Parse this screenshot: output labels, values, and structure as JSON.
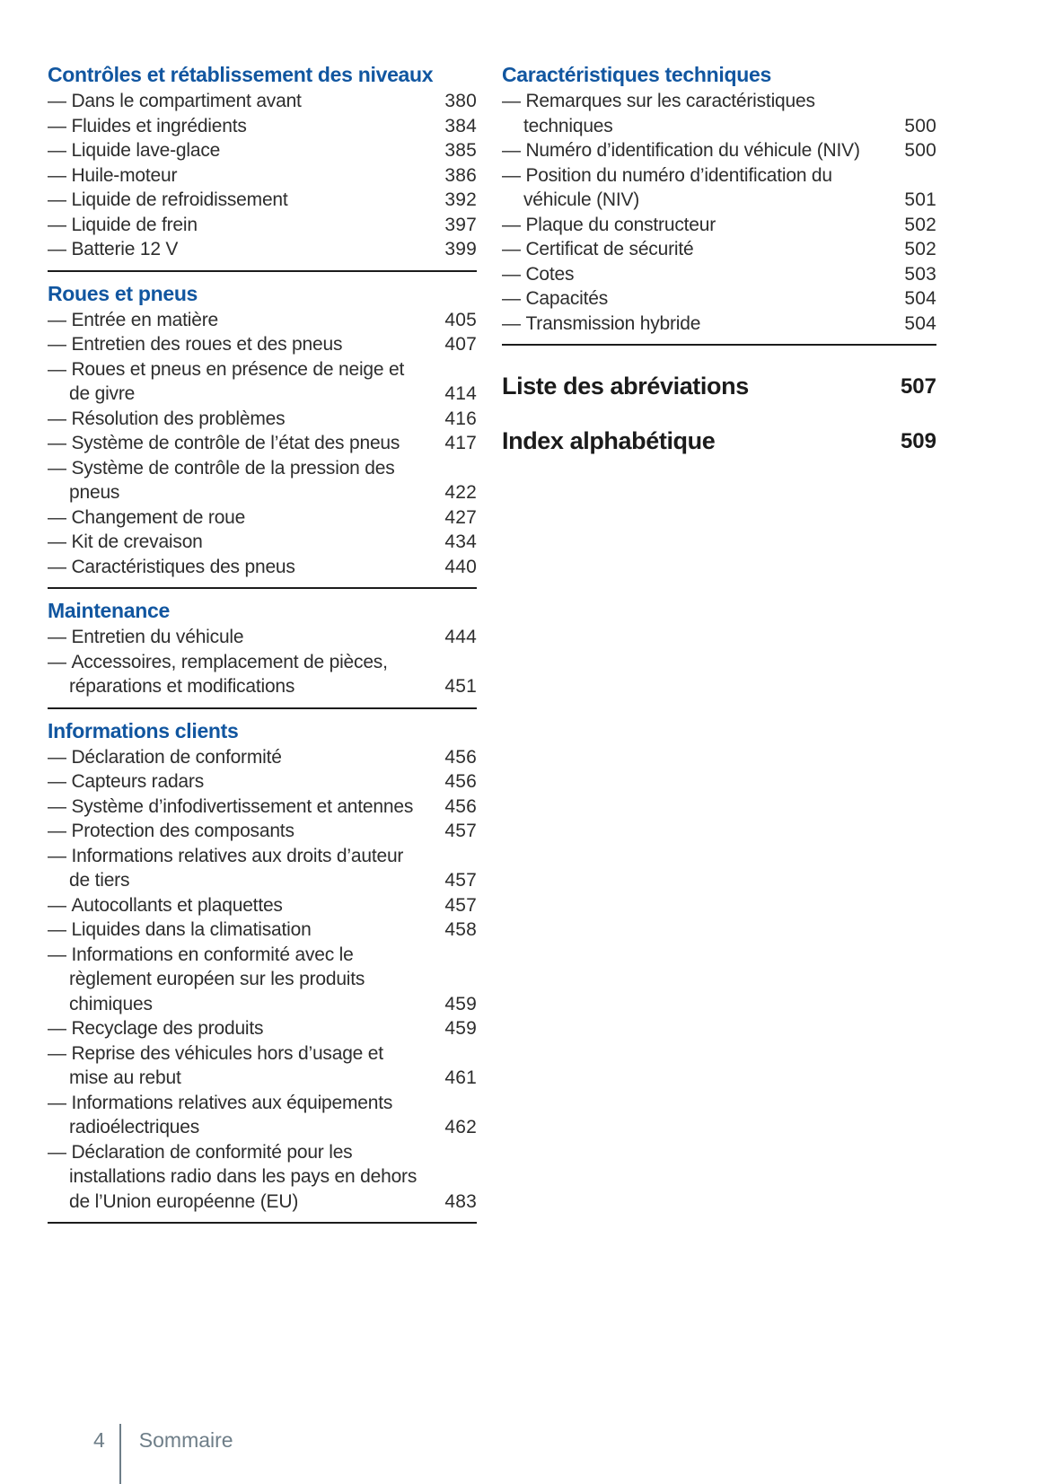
{
  "colors": {
    "heading_blue": "#1156a0",
    "body_text": "#2d2d2d",
    "rule": "#1c1c1c",
    "major_heading_text": "#1b1b1b",
    "footer_gray": "#6e7e88"
  },
  "footer": {
    "page_number": "4",
    "label": "Sommaire"
  },
  "toc": {
    "left_column": {
      "sections": [
        {
          "title": "Contrôles et rétablissement des niveaux",
          "entries": [
            {
              "label": "Dans le compartiment avant",
              "page": "380"
            },
            {
              "label": "Fluides et ingrédients",
              "page": "384"
            },
            {
              "label": "Liquide lave-glace",
              "page": "385"
            },
            {
              "label": "Huile-moteur",
              "page": "386"
            },
            {
              "label": "Liquide de refroidissement",
              "page": "392"
            },
            {
              "label": "Liquide de frein",
              "page": "397"
            },
            {
              "label": "Batterie 12 V",
              "page": "399"
            }
          ]
        },
        {
          "title": "Roues et pneus",
          "entries": [
            {
              "label": "Entrée en matière",
              "page": "405"
            },
            {
              "label": "Entretien des roues et des pneus",
              "page": "407"
            },
            {
              "label": "Roues et pneus en présence de neige et de givre",
              "page": "414"
            },
            {
              "label": "Résolution des problèmes",
              "page": "416"
            },
            {
              "label": "Système de contrôle de l’état des pneus",
              "page": "417"
            },
            {
              "label": "Système de contrôle de la pression des pneus",
              "page": "422"
            },
            {
              "label": "Changement de roue",
              "page": "427"
            },
            {
              "label": "Kit de crevaison",
              "page": "434"
            },
            {
              "label": "Caractéristiques des pneus",
              "page": "440"
            }
          ]
        },
        {
          "title": "Maintenance",
          "entries": [
            {
              "label": "Entretien du véhicule",
              "page": "444"
            },
            {
              "label": "Accessoires, remplacement de pièces, réparations et modifications",
              "page": "451"
            }
          ]
        },
        {
          "title": "Informations clients",
          "entries": [
            {
              "label": "Déclaration de conformité",
              "page": "456"
            },
            {
              "label": "Capteurs radars",
              "page": "456"
            },
            {
              "label": "Système d’infodivertissement et antennes",
              "page": "456"
            },
            {
              "label": "Protection des composants",
              "page": "457"
            },
            {
              "label": "Informations relatives aux droits d’auteur de tiers",
              "page": "457"
            },
            {
              "label": "Autocollants et plaquettes",
              "page": "457"
            },
            {
              "label": "Liquides dans la climatisation",
              "page": "458"
            },
            {
              "label": "Informations en conformité avec le règlement européen sur les produits chimiques",
              "page": "459"
            },
            {
              "label": "Recyclage des produits",
              "page": "459"
            },
            {
              "label": "Reprise des véhicules hors d’usage et mise au rebut",
              "page": "461"
            },
            {
              "label": "Informations relatives aux équipements radioélectriques",
              "page": "462"
            },
            {
              "label": "Déclaration de conformité pour les installations radio dans les pays en dehors de l’Union européenne (EU)",
              "page": "483"
            }
          ]
        }
      ]
    },
    "right_column": {
      "sections": [
        {
          "title": "Caractéristiques techniques",
          "entries": [
            {
              "label": "Remarques sur les caractéristiques techniques",
              "page": "500"
            },
            {
              "label": "Numéro d’identification du véhicule (NIV)",
              "page": "500"
            },
            {
              "label": "Position du numéro d’identification du véhicule (NIV)",
              "page": "501"
            },
            {
              "label": "Plaque du constructeur",
              "page": "502"
            },
            {
              "label": "Certificat de sécurité",
              "page": "502"
            },
            {
              "label": "Cotes",
              "page": "503"
            },
            {
              "label": "Capacités",
              "page": "504"
            },
            {
              "label": "Transmission hybride",
              "page": "504"
            }
          ]
        }
      ],
      "major_entries": [
        {
          "title": "Liste des abréviations",
          "page": "507"
        },
        {
          "title": "Index alphabétique",
          "page": "509"
        }
      ]
    }
  }
}
